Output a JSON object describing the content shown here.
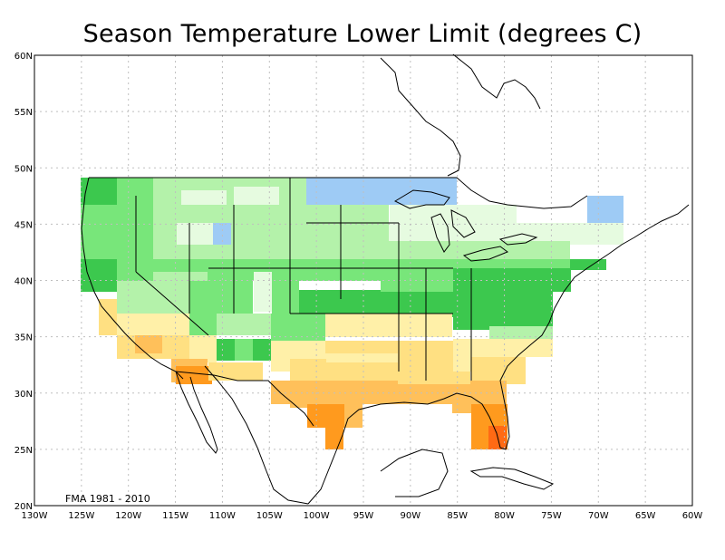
{
  "title": "Season Temperature Lower Limit (degrees C)",
  "period_label": "FMA 1981 - 2010",
  "axes": {
    "x_ticks": [
      "130W",
      "125W",
      "120W",
      "115W",
      "110W",
      "105W",
      "100W",
      "95W",
      "90W",
      "85W",
      "80W",
      "75W",
      "70W",
      "65W",
      "60W"
    ],
    "y_ticks": [
      "60N",
      "55N",
      "50N",
      "45N",
      "40N",
      "35N",
      "30N",
      "25N",
      "20N"
    ]
  },
  "colors": {
    "light_blue": "#9ecbf5",
    "pale_green": "#e6fbe0",
    "light_green": "#b4f2aa",
    "green": "#78e67a",
    "dark_green": "#3cc84e",
    "pale_yellow": "#fff0a8",
    "yellow": "#ffe082",
    "light_orange": "#ffc05a",
    "orange": "#ff9a1e",
    "red_orange": "#ff6a14",
    "grid": "#bfbfbf",
    "coast": "#000000"
  }
}
